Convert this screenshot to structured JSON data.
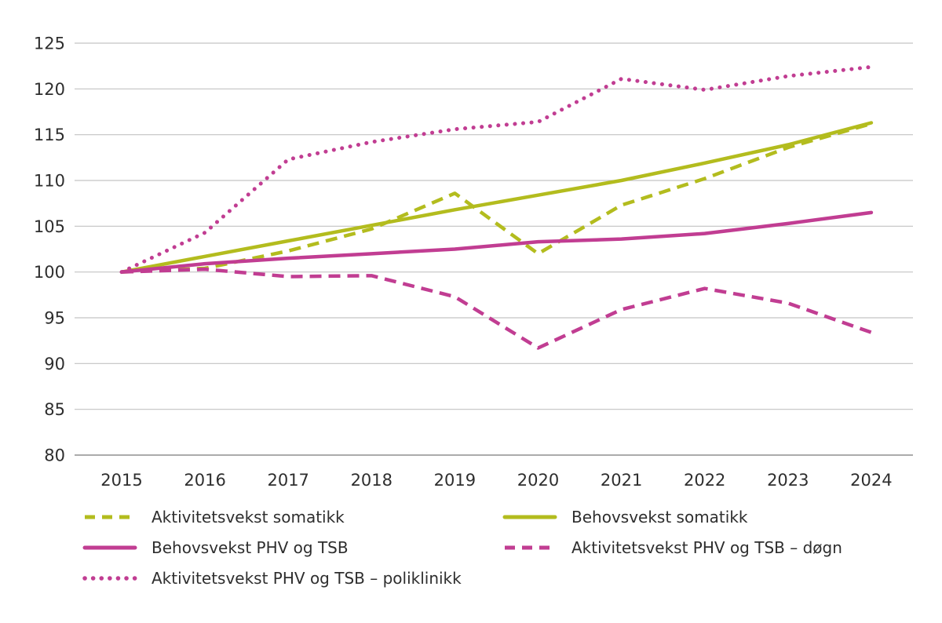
{
  "chart_data": {
    "type": "line",
    "x": [
      "2015",
      "2016",
      "2017",
      "2018",
      "2019",
      "2020",
      "2021",
      "2022",
      "2023",
      "2024"
    ],
    "series": [
      {
        "name": "Aktivitetsvekst somatikk",
        "color": "#b3bc1e",
        "style": "dashed",
        "values": [
          100,
          100.4,
          102.3,
          104.7,
          108.6,
          102.0,
          107.3,
          110.2,
          113.6,
          116.2
        ]
      },
      {
        "name": "Behovsvekst somatikk",
        "color": "#b3bc1e",
        "style": "solid",
        "values": [
          100,
          101.7,
          103.4,
          105.1,
          106.8,
          108.4,
          110.0,
          111.9,
          113.9,
          116.3
        ]
      },
      {
        "name": "Behovsvekst PHV og TSB",
        "color": "#c13d92",
        "style": "solid",
        "values": [
          100,
          100.9,
          101.5,
          102.0,
          102.5,
          103.3,
          103.6,
          104.2,
          105.3,
          106.5
        ]
      },
      {
        "name": "Aktivitetsvekst PHV og TSB – døgn",
        "color": "#c13d92",
        "style": "dashed",
        "values": [
          100,
          100.3,
          99.5,
          99.6,
          97.3,
          91.7,
          95.9,
          98.2,
          96.6,
          93.4
        ]
      },
      {
        "name": "Aktivitetsvekst PHV og TSB – poliklinikk",
        "color": "#c13d92",
        "style": "dotted",
        "values": [
          100,
          104.3,
          112.3,
          114.2,
          115.6,
          116.4,
          121.1,
          119.9,
          121.4,
          122.4
        ]
      }
    ],
    "ylim": [
      80,
      125
    ],
    "yticks": [
      80,
      85,
      90,
      95,
      100,
      105,
      110,
      115,
      120,
      125
    ],
    "grid": true,
    "legend_position": "bottom",
    "title": "",
    "xlabel": "",
    "ylabel": ""
  }
}
